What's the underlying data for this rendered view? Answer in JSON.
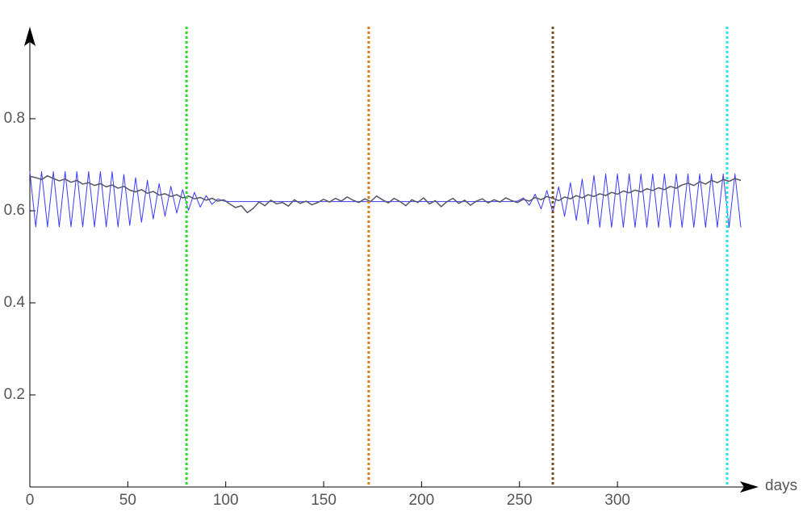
{
  "chart_data": {
    "type": "line",
    "xlabel": "days",
    "xlim": [
      0,
      370
    ],
    "ylim": [
      0,
      1
    ],
    "xticks": [
      0,
      50,
      100,
      150,
      200,
      250,
      300
    ],
    "yticks": [
      0.2,
      0.4,
      0.6,
      0.8
    ],
    "x": [
      0,
      3,
      6,
      9,
      12,
      15,
      18,
      21,
      24,
      27,
      30,
      33,
      36,
      39,
      42,
      45,
      48,
      51,
      54,
      57,
      60,
      63,
      66,
      69,
      72,
      75,
      78,
      81,
      84,
      87,
      90,
      93,
      96,
      99,
      102,
      105,
      108,
      111,
      114,
      117,
      120,
      123,
      126,
      129,
      132,
      135,
      138,
      141,
      144,
      147,
      150,
      153,
      156,
      159,
      162,
      165,
      168,
      171,
      174,
      177,
      180,
      183,
      186,
      189,
      192,
      195,
      198,
      201,
      204,
      207,
      210,
      213,
      216,
      219,
      222,
      225,
      228,
      231,
      234,
      237,
      240,
      243,
      246,
      249,
      252,
      255,
      258,
      261,
      264,
      267,
      270,
      273,
      276,
      279,
      282,
      285,
      288,
      291,
      294,
      297,
      300,
      303,
      306,
      309,
      312,
      315,
      318,
      321,
      324,
      327,
      330,
      333,
      336,
      339,
      342,
      345,
      348,
      351,
      354,
      357,
      360,
      363
    ],
    "series": [
      {
        "color": "#3b3bff",
        "width": 1,
        "values": [
          0.685,
          0.565,
          0.685,
          0.565,
          0.685,
          0.565,
          0.685,
          0.565,
          0.685,
          0.565,
          0.685,
          0.565,
          0.685,
          0.565,
          0.685,
          0.565,
          0.679,
          0.568,
          0.672,
          0.575,
          0.666,
          0.582,
          0.659,
          0.588,
          0.653,
          0.595,
          0.646,
          0.601,
          0.64,
          0.608,
          0.633,
          0.614,
          0.626,
          0.621,
          0.62,
          0.62,
          0.62,
          0.62,
          0.62,
          0.62,
          0.62,
          0.62,
          0.62,
          0.62,
          0.62,
          0.62,
          0.62,
          0.62,
          0.62,
          0.62,
          0.62,
          0.62,
          0.62,
          0.62,
          0.62,
          0.62,
          0.62,
          0.62,
          0.62,
          0.62,
          0.62,
          0.62,
          0.62,
          0.62,
          0.62,
          0.62,
          0.62,
          0.62,
          0.62,
          0.62,
          0.62,
          0.62,
          0.62,
          0.62,
          0.62,
          0.62,
          0.62,
          0.62,
          0.62,
          0.62,
          0.62,
          0.62,
          0.62,
          0.621,
          0.628,
          0.612,
          0.636,
          0.604,
          0.644,
          0.596,
          0.652,
          0.588,
          0.661,
          0.579,
          0.669,
          0.571,
          0.677,
          0.564,
          0.68,
          0.564,
          0.68,
          0.564,
          0.68,
          0.564,
          0.68,
          0.564,
          0.68,
          0.564,
          0.68,
          0.564,
          0.68,
          0.564,
          0.68,
          0.564,
          0.68,
          0.564,
          0.68,
          0.564,
          0.68,
          0.564,
          0.68,
          0.564
        ]
      },
      {
        "color": "#555566",
        "width": 1.5,
        "values": [
          0.675,
          0.672,
          0.668,
          0.676,
          0.67,
          0.665,
          0.669,
          0.662,
          0.666,
          0.658,
          0.661,
          0.655,
          0.659,
          0.652,
          0.656,
          0.649,
          0.653,
          0.645,
          0.641,
          0.646,
          0.638,
          0.642,
          0.634,
          0.637,
          0.631,
          0.635,
          0.628,
          0.632,
          0.626,
          0.629,
          0.623,
          0.627,
          0.621,
          0.624,
          0.615,
          0.607,
          0.611,
          0.596,
          0.605,
          0.619,
          0.611,
          0.623,
          0.615,
          0.618,
          0.61,
          0.624,
          0.616,
          0.621,
          0.613,
          0.618,
          0.625,
          0.619,
          0.627,
          0.621,
          0.63,
          0.623,
          0.618,
          0.626,
          0.62,
          0.632,
          0.624,
          0.617,
          0.627,
          0.62,
          0.611,
          0.624,
          0.618,
          0.628,
          0.615,
          0.622,
          0.609,
          0.62,
          0.627,
          0.616,
          0.623,
          0.612,
          0.621,
          0.626,
          0.617,
          0.624,
          0.619,
          0.628,
          0.622,
          0.618,
          0.625,
          0.621,
          0.629,
          0.624,
          0.631,
          0.627,
          0.622,
          0.63,
          0.626,
          0.633,
          0.628,
          0.635,
          0.631,
          0.637,
          0.633,
          0.64,
          0.636,
          0.643,
          0.639,
          0.645,
          0.641,
          0.648,
          0.644,
          0.65,
          0.646,
          0.653,
          0.649,
          0.656,
          0.66,
          0.655,
          0.663,
          0.658,
          0.666,
          0.661,
          0.668,
          0.664,
          0.67,
          0.666
        ]
      }
    ],
    "vlines": [
      {
        "value": 80,
        "color": "#22dd22"
      },
      {
        "value": 173,
        "color": "#e07b10"
      },
      {
        "value": 267,
        "color": "#7a4a1e"
      },
      {
        "value": 356,
        "color": "#22e6e6"
      }
    ]
  }
}
